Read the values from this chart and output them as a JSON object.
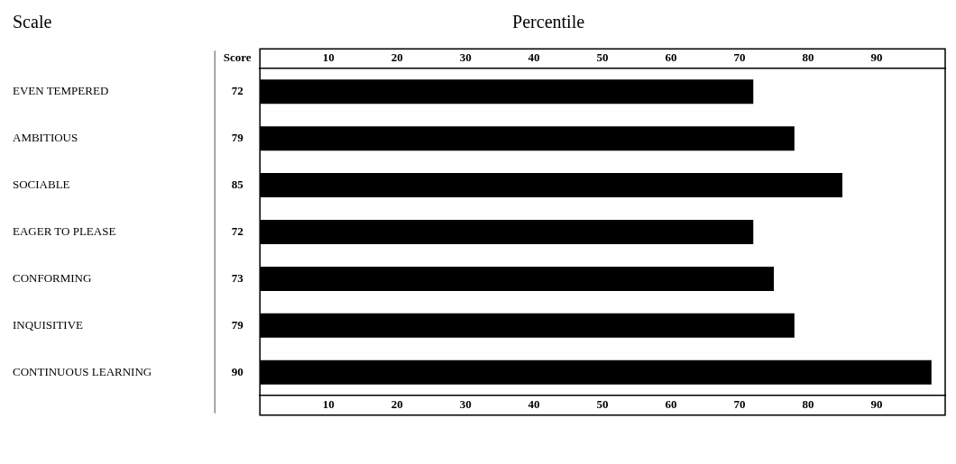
{
  "chart_data": {
    "type": "bar",
    "orientation": "horizontal",
    "ylabel": "Scale",
    "x2label": "Percentile",
    "annotations": [
      "Score",
      "72",
      "79",
      "85",
      "72",
      "73",
      "79",
      "90"
    ],
    "categories": [
      "EVEN TEMPERED",
      "AMBITIOUS",
      "SOCIABLE",
      "EAGER TO PLEASE",
      "CONFORMING",
      "INQUISITIVE",
      "CONTINUOUS LEARNING"
    ],
    "values": [
      72,
      78,
      85,
      72,
      75,
      78,
      98
    ],
    "color": "#000000",
    "xlim": [
      0,
      100
    ],
    "xticks": [
      10,
      20,
      30,
      40,
      50,
      60,
      70,
      80,
      90
    ],
    "x2lim": [
      0,
      100
    ],
    "x2ticks": [
      10,
      20,
      30,
      40,
      50,
      60,
      70,
      80,
      90
    ],
    "grid": false,
    "legend": false
  }
}
